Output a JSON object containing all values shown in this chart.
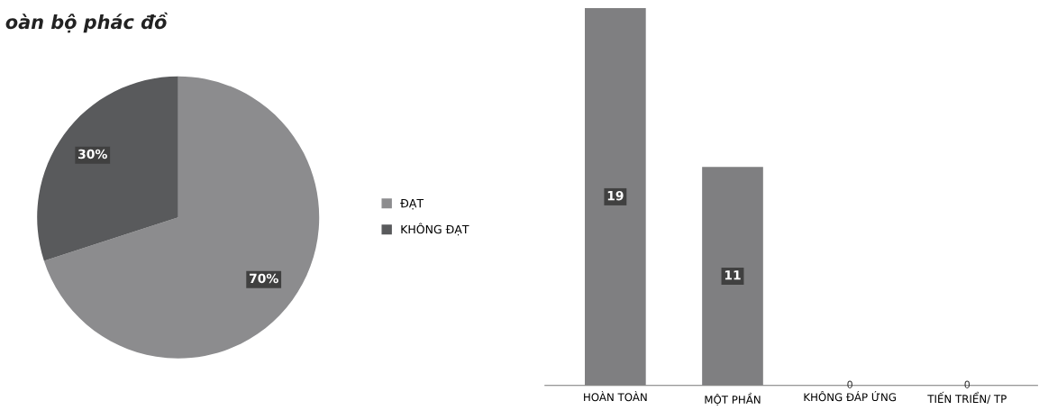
{
  "chart_data": [
    {
      "type": "pie",
      "title": "oàn bộ phác đồ",
      "categories": [
        "ĐẠT",
        "KHÔNG ĐẠT"
      ],
      "values": [
        70,
        30
      ],
      "colors": [
        "#8c8c8e",
        "#595a5c"
      ],
      "value_labels": [
        "70%",
        "30%"
      ],
      "legend": "right"
    },
    {
      "type": "bar",
      "categories": [
        "HOÀN TOÀN",
        "MỘT PHẦN",
        "KHÔNG ĐÁP ỨNG",
        "TIẾN TRIỂN/ TP"
      ],
      "values": [
        19,
        11,
        0,
        0
      ],
      "color": "#7f7f81",
      "data_labels": true
    }
  ]
}
